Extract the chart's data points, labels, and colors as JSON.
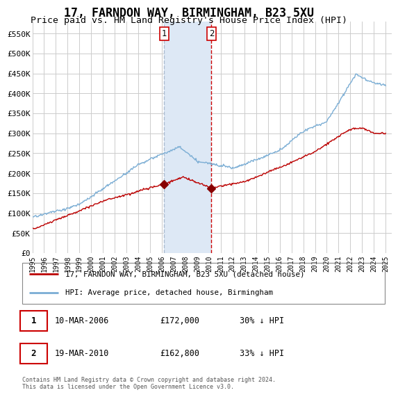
{
  "title": "17, FARNDON WAY, BIRMINGHAM, B23 5XU",
  "subtitle": "Price paid vs. HM Land Registry's House Price Index (HPI)",
  "title_fontsize": 12,
  "subtitle_fontsize": 9.5,
  "ylabel_ticks": [
    "£0",
    "£50K",
    "£100K",
    "£150K",
    "£200K",
    "£250K",
    "£300K",
    "£350K",
    "£400K",
    "£450K",
    "£500K",
    "£550K"
  ],
  "ytick_values": [
    0,
    50000,
    100000,
    150000,
    200000,
    250000,
    300000,
    350000,
    400000,
    450000,
    500000,
    550000
  ],
  "ylim": [
    0,
    580000
  ],
  "xlim_start": 1995.0,
  "xlim_end": 2025.5,
  "sale1_date": 2006.19,
  "sale1_price": 172000,
  "sale1_label": "1",
  "sale1_hpi_pct": "30% ↓ HPI",
  "sale1_date_str": "10-MAR-2006",
  "sale2_date": 2010.21,
  "sale2_price": 162800,
  "sale2_label": "2",
  "sale2_hpi_pct": "33% ↓ HPI",
  "sale2_date_str": "19-MAR-2010",
  "line1_color": "#bb0000",
  "line2_color": "#7aadd4",
  "shade_color": "#dde8f5",
  "grid_color": "#cccccc",
  "background_color": "#ffffff",
  "legend_line1": "17, FARNDON WAY, BIRMINGHAM, B23 5XU (detached house)",
  "legend_line2": "HPI: Average price, detached house, Birmingham",
  "footnote": "Contains HM Land Registry data © Crown copyright and database right 2024.\nThis data is licensed under the Open Government Licence v3.0.",
  "sale_marker_color": "#880000",
  "table_border_color": "#cc0000",
  "sale1_vline_color": "#aabbd0",
  "sale2_vline_color": "#cc0000"
}
